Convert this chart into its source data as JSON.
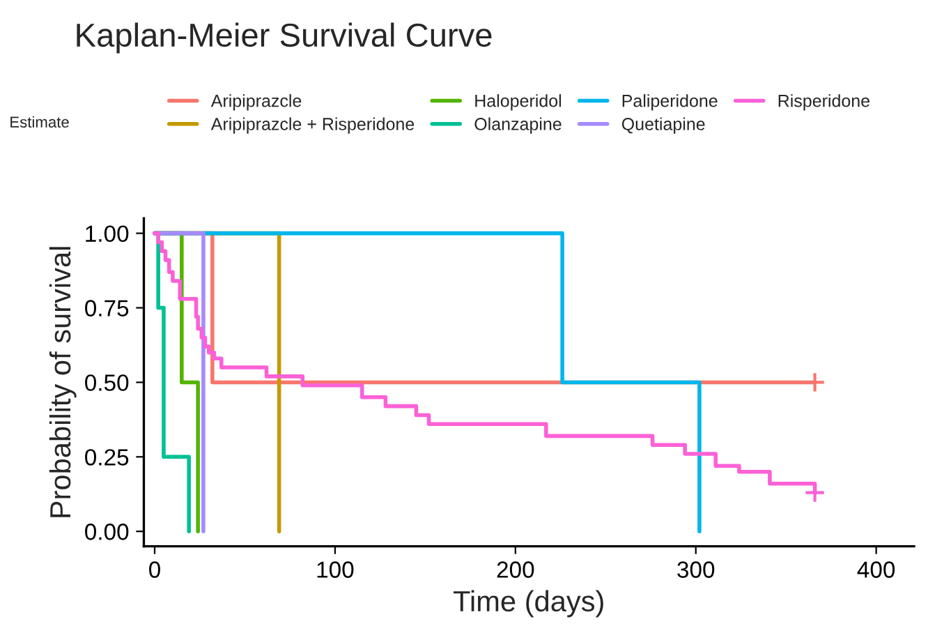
{
  "chart_data": {
    "type": "step",
    "title": "Kaplan-Meier Survival Curve",
    "xlabel": "Time (days)",
    "ylabel": "Probability of survival",
    "legend_title": "Estimate",
    "legend": "top",
    "grid": false,
    "line_style": "solid",
    "xlim": [
      -6,
      421
    ],
    "ylim": [
      -0.05,
      1.05
    ],
    "xticks": [
      0,
      100,
      200,
      300,
      400
    ],
    "yticks": [
      {
        "value": 0,
        "label": "0.00"
      },
      {
        "value": 0.25,
        "label": "0.25"
      },
      {
        "value": 0.5,
        "label": "0.50"
      },
      {
        "value": 0.75,
        "label": "0.75"
      },
      {
        "value": 1,
        "label": "1.00"
      }
    ],
    "series": [
      {
        "name": "Aripiprazcle",
        "color": "#f8766d",
        "x": [
          0,
          32,
          366
        ],
        "values": [
          1,
          0.5,
          0.5
        ]
      },
      {
        "name": "Aripiprazcle + Risperidone",
        "color": "#c49a00",
        "x": [
          0,
          69
        ],
        "values": [
          1,
          0
        ]
      },
      {
        "name": "Haloperidol",
        "color": "#53b400",
        "x": [
          0,
          15,
          24
        ],
        "values": [
          1,
          0.5,
          0
        ]
      },
      {
        "name": "Olanzapine",
        "color": "#00c094",
        "x": [
          0,
          2,
          5,
          19
        ],
        "values": [
          1,
          0.75,
          0.25,
          0
        ]
      },
      {
        "name": "Paliperidone",
        "color": "#00b6eb",
        "x": [
          0,
          226,
          302
        ],
        "values": [
          1,
          0.5,
          0
        ]
      },
      {
        "name": "Quetiapine",
        "color": "#a58aff",
        "x": [
          0,
          27
        ],
        "values": [
          1,
          0
        ]
      },
      {
        "name": "Risperidone",
        "color": "#fb61d7",
        "x": [
          0,
          2,
          4,
          6,
          8,
          10,
          14,
          23,
          24,
          26,
          28,
          30,
          33,
          37,
          62,
          82,
          115,
          128,
          145,
          152,
          217,
          276,
          294,
          311,
          324,
          341,
          366
        ],
        "values": [
          1,
          0.97,
          0.94,
          0.91,
          0.87,
          0.84,
          0.78,
          0.72,
          0.68,
          0.65,
          0.62,
          0.6,
          0.58,
          0.55,
          0.52,
          0.49,
          0.45,
          0.42,
          0.39,
          0.36,
          0.32,
          0.29,
          0.26,
          0.22,
          0.2,
          0.16,
          0.13
        ]
      },
      {
        "type": "scatter",
        "color": "#f8766d",
        "marker": "cross",
        "x": [
          366
        ],
        "values": [
          0.5
        ]
      },
      {
        "type": "scatter",
        "color": "#fb61d7",
        "marker": "cross",
        "x": [
          366
        ],
        "values": [
          0.13
        ]
      }
    ]
  }
}
